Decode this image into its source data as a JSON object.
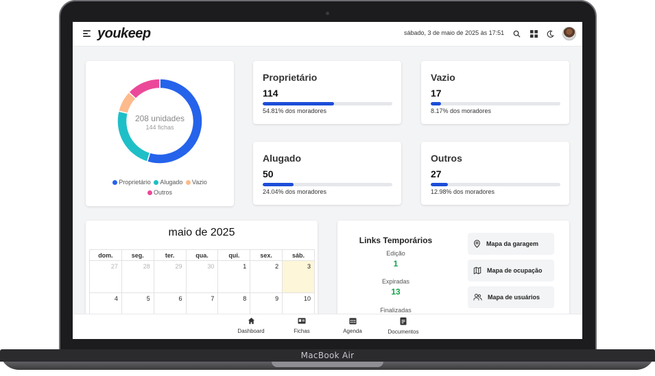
{
  "device": {
    "brand": "MacBook Air"
  },
  "topbar": {
    "logo": "youkeep",
    "datetime": "sábado, 3 de maio de 2025 às 17:51",
    "icons": [
      "menu-icon",
      "search-icon",
      "apps-grid-icon",
      "moon-icon",
      "avatar"
    ]
  },
  "summary": {
    "units_label": "208 unidades",
    "fichas_label": "144 fichas",
    "chart_data": {
      "type": "pie",
      "categories": [
        "Proprietário",
        "Alugado",
        "Vazio",
        "Outros"
      ],
      "values": [
        114,
        50,
        17,
        27
      ],
      "colors": [
        "#2563eb",
        "#1fbfc8",
        "#fdba8c",
        "#ec4899"
      ]
    },
    "legend": [
      {
        "label": "Proprietário",
        "color": "#2563eb"
      },
      {
        "label": "Alugado",
        "color": "#1fbfc8"
      },
      {
        "label": "Vazio",
        "color": "#fdba8c"
      },
      {
        "label": "Outros",
        "color": "#ec4899"
      }
    ]
  },
  "stats": [
    {
      "title": "Proprietário",
      "value": "114",
      "percent": 54.81,
      "subtitle": "54.81% dos moradores"
    },
    {
      "title": "Vazio",
      "value": "17",
      "percent": 8.17,
      "subtitle": "8.17% dos moradores"
    },
    {
      "title": "Alugado",
      "value": "50",
      "percent": 24.04,
      "subtitle": "24.04% dos moradores"
    },
    {
      "title": "Outros",
      "value": "27",
      "percent": 12.98,
      "subtitle": "12.98% dos moradores"
    }
  ],
  "calendar": {
    "title": "maio de 2025",
    "weekdays": [
      "dom.",
      "seg.",
      "ter.",
      "qua.",
      "qui.",
      "sex.",
      "sáb."
    ],
    "rows": [
      [
        "27",
        "28",
        "29",
        "30",
        "1",
        "2",
        "3"
      ],
      [
        "4",
        "5",
        "6",
        "7",
        "8",
        "9",
        "10"
      ]
    ]
  },
  "links": {
    "title": "Links Temporários",
    "edicao_label": "Edição",
    "edicao_value": "1",
    "expiradas_label": "Expiradas",
    "expiradas_value": "13",
    "finalizadas_label": "Finalizadas",
    "buttons": [
      "Mapa da garagem",
      "Mapa de ocupação",
      "Mapa de usuários"
    ]
  },
  "bottom_nav": [
    "Dashboard",
    "Fichas",
    "Agenda",
    "Documentos"
  ]
}
